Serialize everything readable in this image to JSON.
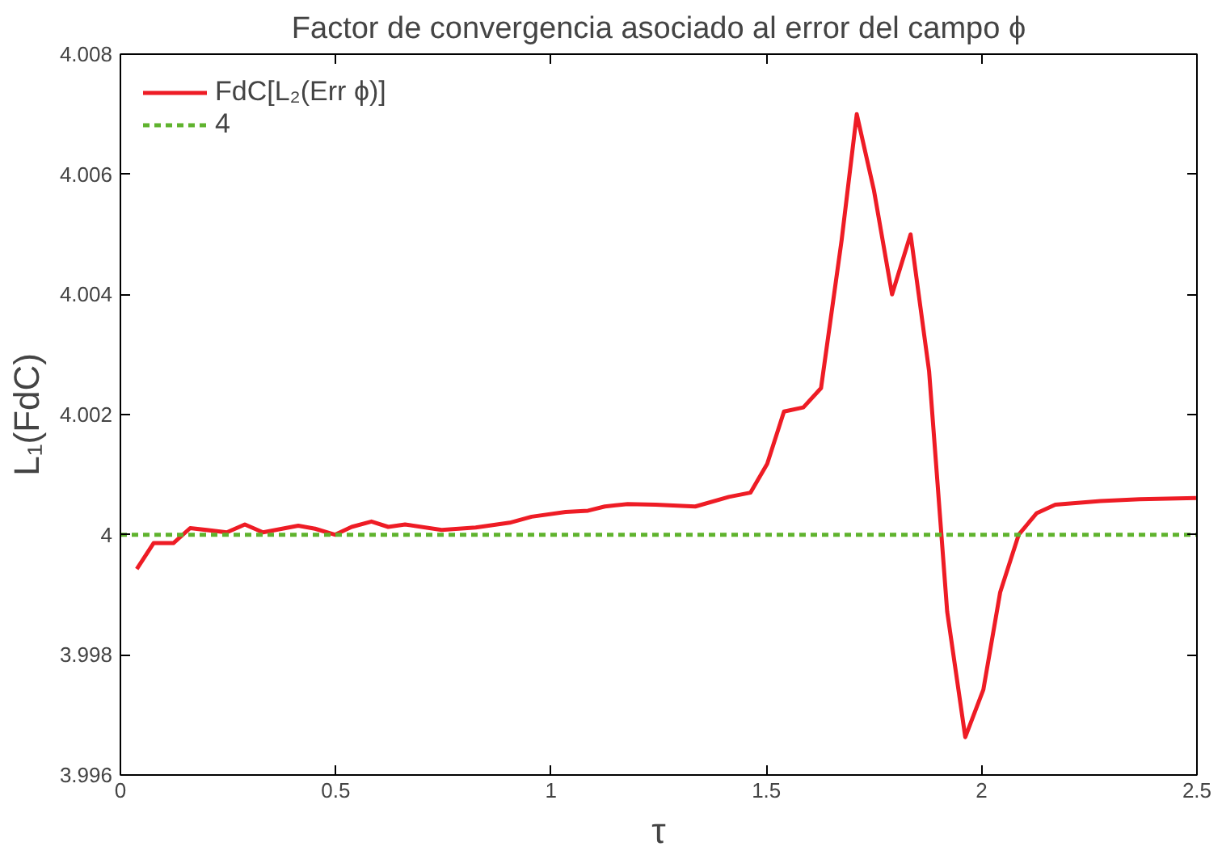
{
  "chart_data": {
    "type": "line",
    "title": "Factor de convergencia asociado al error del campo ϕ",
    "xlabel": "τ",
    "ylabel": "L₁(FdC)",
    "xlim": [
      0,
      2.5
    ],
    "xticks": [
      0,
      0.5,
      1,
      1.5,
      2,
      2.5
    ],
    "ylim": [
      3.996,
      4.008
    ],
    "yticks": [
      3.996,
      3.998,
      4,
      4.002,
      4.004,
      4.006,
      4.008
    ],
    "grid": false,
    "legend": "top left",
    "marker": "none",
    "series": [
      {
        "name": "FdC[L₂(Err ϕ)]",
        "color": "#ee1c25",
        "line_style": "solid",
        "x": [
          0.038,
          0.077,
          0.123,
          0.162,
          0.247,
          0.289,
          0.331,
          0.413,
          0.452,
          0.498,
          0.537,
          0.583,
          0.622,
          0.661,
          0.746,
          0.825,
          0.904,
          0.955,
          1.034,
          1.086,
          1.125,
          1.178,
          1.243,
          1.335,
          1.413,
          1.463,
          1.502,
          1.541,
          1.586,
          1.627,
          1.675,
          1.71,
          1.75,
          1.792,
          1.835,
          1.878,
          1.92,
          1.962,
          2.004,
          2.043,
          2.086,
          2.128,
          2.171,
          2.276,
          2.367,
          2.498
        ],
        "values": [
          3.99943,
          3.99986,
          3.99986,
          4.00011,
          4.00004,
          4.00017,
          4.00004,
          4.00015,
          4.0001,
          4.0,
          4.00013,
          4.00022,
          4.00013,
          4.00017,
          4.00008,
          4.00012,
          4.0002,
          4.0003,
          4.00038,
          4.0004,
          4.00047,
          4.00051,
          4.0005,
          4.00047,
          4.00063,
          4.0007,
          4.00118,
          4.00205,
          4.00212,
          4.00244,
          4.00491,
          4.007,
          4.00573,
          4.004,
          4.005,
          4.00272,
          3.99872,
          3.99663,
          3.99742,
          3.99904,
          4.0,
          4.00036,
          4.0005,
          4.00056,
          4.00059,
          4.00061
        ]
      },
      {
        "name": "4",
        "color": "#5fb32e",
        "line_style": "dashed",
        "x": [
          0,
          2.5
        ],
        "values": [
          4,
          4
        ]
      }
    ]
  }
}
